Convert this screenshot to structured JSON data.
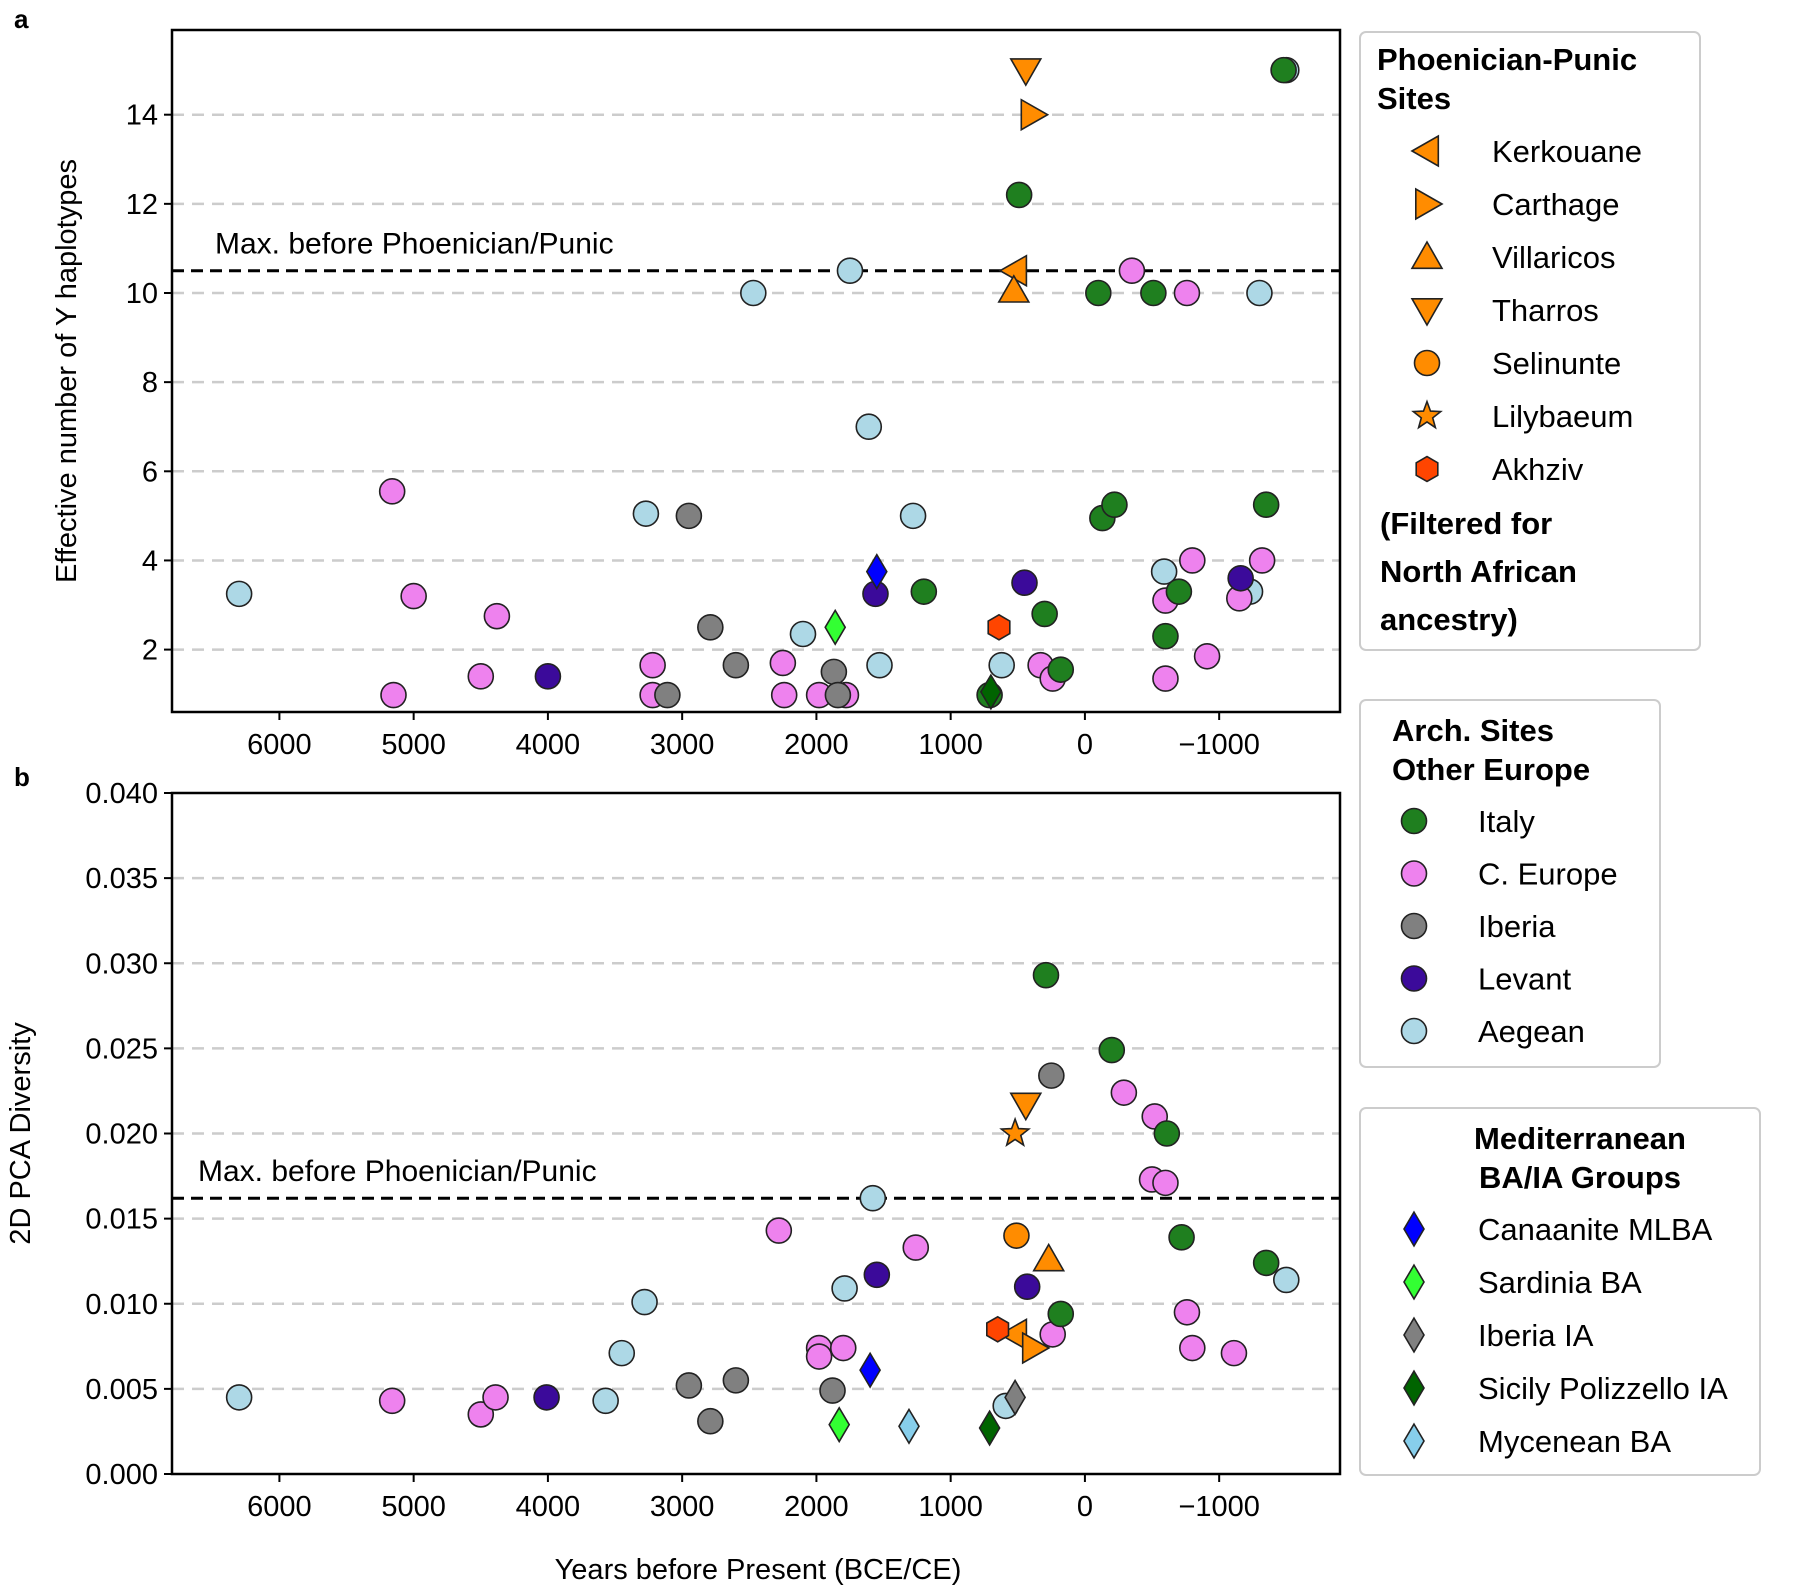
{
  "panel_labels": {
    "a": "a",
    "b": "b"
  },
  "x_axis_label": "Years before Present (BCE/CE)",
  "chart_data": [
    {
      "type": "scatter",
      "panel": "a",
      "xlabel": "",
      "ylabel": "Effective number of Y haplotypes",
      "xlim": [
        6800,
        -1900
      ],
      "ylim": [
        0.6,
        15.9
      ],
      "x_ticks": [
        6000,
        5000,
        4000,
        3000,
        2000,
        1000,
        0,
        -1000
      ],
      "x_tick_labels": [
        "6000",
        "5000",
        "4000",
        "3000",
        "2000",
        "1000",
        "0",
        "−1000"
      ],
      "y_ticks": [
        2,
        4,
        6,
        8,
        10,
        12,
        14
      ],
      "y_tick_labels": [
        "2",
        "4",
        "6",
        "8",
        "10",
        "12",
        "14"
      ],
      "grid": "horizontal dashed",
      "reference_line": {
        "y": 10.5,
        "label": "Max. before Phoenician/Punic"
      },
      "points": [
        {
          "g": "aegean",
          "x": 6300,
          "y": 3.25
        },
        {
          "g": "aegean",
          "x": 3270,
          "y": 5.05
        },
        {
          "g": "aegean",
          "x": 2470,
          "y": 10.0
        },
        {
          "g": "aegean",
          "x": 2100,
          "y": 2.35
        },
        {
          "g": "aegean",
          "x": 1750,
          "y": 10.5
        },
        {
          "g": "aegean",
          "x": 1610,
          "y": 7.0
        },
        {
          "g": "aegean",
          "x": 1530,
          "y": 1.65
        },
        {
          "g": "aegean",
          "x": 1280,
          "y": 5.0
        },
        {
          "g": "aegean",
          "x": 620,
          "y": 1.65
        },
        {
          "g": "aegean",
          "x": -590,
          "y": 3.75
        },
        {
          "g": "aegean",
          "x": -1300,
          "y": 10.0
        },
        {
          "g": "aegean",
          "x": -1230,
          "y": 3.3
        },
        {
          "g": "aegean",
          "x": -1500,
          "y": 15.0
        },
        {
          "g": "ceurope",
          "x": 5160,
          "y": 5.55
        },
        {
          "g": "ceurope",
          "x": 5000,
          "y": 3.2
        },
        {
          "g": "ceurope",
          "x": 5150,
          "y": 0.98
        },
        {
          "g": "ceurope",
          "x": 4500,
          "y": 1.4
        },
        {
          "g": "ceurope",
          "x": 4380,
          "y": 2.75
        },
        {
          "g": "ceurope",
          "x": 3220,
          "y": 1.65
        },
        {
          "g": "ceurope",
          "x": 3220,
          "y": 0.98
        },
        {
          "g": "ceurope",
          "x": 2250,
          "y": 1.7
        },
        {
          "g": "ceurope",
          "x": 2240,
          "y": 0.98
        },
        {
          "g": "ceurope",
          "x": 1980,
          "y": 0.98
        },
        {
          "g": "ceurope",
          "x": 1780,
          "y": 0.98
        },
        {
          "g": "ceurope",
          "x": 330,
          "y": 1.65
        },
        {
          "g": "ceurope",
          "x": 240,
          "y": 1.35
        },
        {
          "g": "ceurope",
          "x": -350,
          "y": 10.5
        },
        {
          "g": "ceurope",
          "x": -760,
          "y": 10.0
        },
        {
          "g": "ceurope",
          "x": -600,
          "y": 3.1
        },
        {
          "g": "ceurope",
          "x": -600,
          "y": 1.35
        },
        {
          "g": "ceurope",
          "x": -800,
          "y": 4.0
        },
        {
          "g": "ceurope",
          "x": -910,
          "y": 1.85
        },
        {
          "g": "ceurope",
          "x": -1150,
          "y": 3.15
        },
        {
          "g": "ceurope",
          "x": -1320,
          "y": 4.0
        },
        {
          "g": "iberia",
          "x": 2950,
          "y": 5.0
        },
        {
          "g": "iberia",
          "x": 2790,
          "y": 2.5
        },
        {
          "g": "iberia",
          "x": 2600,
          "y": 1.65
        },
        {
          "g": "iberia",
          "x": 3110,
          "y": 0.98
        },
        {
          "g": "iberia",
          "x": 1870,
          "y": 1.5
        },
        {
          "g": "iberia",
          "x": 1840,
          "y": 0.98
        },
        {
          "g": "levant",
          "x": 4000,
          "y": 1.4
        },
        {
          "g": "levant",
          "x": 1560,
          "y": 3.25
        },
        {
          "g": "levant",
          "x": 450,
          "y": 3.5
        },
        {
          "g": "levant",
          "x": -1160,
          "y": 3.6
        },
        {
          "g": "italy",
          "x": 490,
          "y": 12.2
        },
        {
          "g": "italy",
          "x": 1200,
          "y": 3.3
        },
        {
          "g": "italy",
          "x": 300,
          "y": 2.8
        },
        {
          "g": "italy",
          "x": 180,
          "y": 1.55
        },
        {
          "g": "italy",
          "x": 710,
          "y": 0.98
        },
        {
          "g": "italy",
          "x": -100,
          "y": 10.0
        },
        {
          "g": "italy",
          "x": -510,
          "y": 10.0
        },
        {
          "g": "italy",
          "x": -130,
          "y": 4.95
        },
        {
          "g": "italy",
          "x": -220,
          "y": 5.25
        },
        {
          "g": "italy",
          "x": -700,
          "y": 3.3
        },
        {
          "g": "italy",
          "x": -600,
          "y": 2.3
        },
        {
          "g": "italy",
          "x": -1350,
          "y": 5.25
        },
        {
          "g": "italy",
          "x": -1480,
          "y": 15.0
        },
        {
          "g": "tharros",
          "x": 440,
          "y": 15.0
        },
        {
          "g": "carthage",
          "x": 390,
          "y": 14.0
        },
        {
          "g": "kerkouane",
          "x": 520,
          "y": 10.5
        },
        {
          "g": "villaricos",
          "x": 530,
          "y": 10.05
        },
        {
          "g": "akhziv",
          "x": 640,
          "y": 2.5
        },
        {
          "g": "canaanite",
          "x": 1550,
          "y": 3.75
        },
        {
          "g": "sardinia",
          "x": 1860,
          "y": 2.5
        },
        {
          "g": "sicily",
          "x": 700,
          "y": 1.05
        }
      ]
    },
    {
      "type": "scatter",
      "panel": "b",
      "xlabel": "Years before Present (BCE/CE)",
      "ylabel": "2D PCA Diversity",
      "xlim": [
        6800,
        -1900
      ],
      "ylim": [
        0.0,
        0.04
      ],
      "x_ticks": [
        6000,
        5000,
        4000,
        3000,
        2000,
        1000,
        0,
        -1000
      ],
      "x_tick_labels": [
        "6000",
        "5000",
        "4000",
        "3000",
        "2000",
        "1000",
        "0",
        "−1000"
      ],
      "y_ticks": [
        0.0,
        0.005,
        0.01,
        0.015,
        0.02,
        0.025,
        0.03,
        0.035,
        0.04
      ],
      "y_tick_labels": [
        "0.000",
        "0.005",
        "0.010",
        "0.015",
        "0.020",
        "0.025",
        "0.030",
        "0.035",
        "0.040"
      ],
      "grid": "horizontal dashed",
      "reference_line": {
        "y": 0.0162,
        "label": "Max. before Phoenician/Punic"
      },
      "points": [
        {
          "g": "aegean",
          "x": 6300,
          "y": 0.0045
        },
        {
          "g": "aegean",
          "x": 3570,
          "y": 0.0043
        },
        {
          "g": "aegean",
          "x": 3450,
          "y": 0.0071
        },
        {
          "g": "aegean",
          "x": 3280,
          "y": 0.0101
        },
        {
          "g": "aegean",
          "x": 1790,
          "y": 0.0109
        },
        {
          "g": "aegean",
          "x": 1580,
          "y": 0.0162
        },
        {
          "g": "aegean",
          "x": 590,
          "y": 0.004
        },
        {
          "g": "aegean",
          "x": -1500,
          "y": 0.0114
        },
        {
          "g": "ceurope",
          "x": 5160,
          "y": 0.0043
        },
        {
          "g": "ceurope",
          "x": 4500,
          "y": 0.0035
        },
        {
          "g": "ceurope",
          "x": 4390,
          "y": 0.0045
        },
        {
          "g": "ceurope",
          "x": 2280,
          "y": 0.0143
        },
        {
          "g": "ceurope",
          "x": 1980,
          "y": 0.0074
        },
        {
          "g": "ceurope",
          "x": 1980,
          "y": 0.0069
        },
        {
          "g": "ceurope",
          "x": 1800,
          "y": 0.0074
        },
        {
          "g": "ceurope",
          "x": 1260,
          "y": 0.0133
        },
        {
          "g": "ceurope",
          "x": 240,
          "y": 0.0082
        },
        {
          "g": "ceurope",
          "x": -290,
          "y": 0.0224
        },
        {
          "g": "ceurope",
          "x": -520,
          "y": 0.021
        },
        {
          "g": "ceurope",
          "x": -500,
          "y": 0.0173
        },
        {
          "g": "ceurope",
          "x": -600,
          "y": 0.0171
        },
        {
          "g": "ceurope",
          "x": -760,
          "y": 0.0095
        },
        {
          "g": "ceurope",
          "x": -800,
          "y": 0.0074
        },
        {
          "g": "ceurope",
          "x": -1110,
          "y": 0.0071
        },
        {
          "g": "iberia",
          "x": 2950,
          "y": 0.0052
        },
        {
          "g": "iberia",
          "x": 2790,
          "y": 0.0031
        },
        {
          "g": "iberia",
          "x": 2600,
          "y": 0.0055
        },
        {
          "g": "iberia",
          "x": 1880,
          "y": 0.0049
        },
        {
          "g": "iberia",
          "x": 250,
          "y": 0.0234
        },
        {
          "g": "levant",
          "x": 4010,
          "y": 0.0045
        },
        {
          "g": "levant",
          "x": 1550,
          "y": 0.0117
        },
        {
          "g": "levant",
          "x": 430,
          "y": 0.011
        },
        {
          "g": "italy",
          "x": 290,
          "y": 0.0293
        },
        {
          "g": "italy",
          "x": -200,
          "y": 0.0249
        },
        {
          "g": "italy",
          "x": -610,
          "y": 0.02
        },
        {
          "g": "italy",
          "x": -720,
          "y": 0.0139
        },
        {
          "g": "italy",
          "x": -1350,
          "y": 0.0124
        },
        {
          "g": "italy",
          "x": 180,
          "y": 0.0094
        },
        {
          "g": "tharros",
          "x": 440,
          "y": 0.0217
        },
        {
          "g": "lilybaeum",
          "x": 520,
          "y": 0.02
        },
        {
          "g": "selinunte",
          "x": 510,
          "y": 0.014
        },
        {
          "g": "villaricos",
          "x": 270,
          "y": 0.0126
        },
        {
          "g": "kerkouane",
          "x": 520,
          "y": 0.0082
        },
        {
          "g": "carthage",
          "x": 380,
          "y": 0.0074
        },
        {
          "g": "akhziv",
          "x": 650,
          "y": 0.0085
        },
        {
          "g": "canaanite",
          "x": 1600,
          "y": 0.0061
        },
        {
          "g": "sardinia",
          "x": 1830,
          "y": 0.0029
        },
        {
          "g": "mycenean",
          "x": 1310,
          "y": 0.0028
        },
        {
          "g": "sicily",
          "x": 710,
          "y": 0.0027
        },
        {
          "g": "iberiaIA",
          "x": 520,
          "y": 0.0045
        }
      ]
    }
  ],
  "legends": {
    "phoenician": {
      "title_line1": "Phoenician-Punic",
      "title_line2": "Sites",
      "items": [
        {
          "g": "kerkouane",
          "label": "Kerkouane"
        },
        {
          "g": "carthage",
          "label": "Carthage"
        },
        {
          "g": "villaricos",
          "label": "Villaricos"
        },
        {
          "g": "tharros",
          "label": "Tharros"
        },
        {
          "g": "selinunte",
          "label": "Selinunte"
        },
        {
          "g": "lilybaeum",
          "label": "Lilybaeum"
        },
        {
          "g": "akhziv",
          "label": "Akhziv"
        }
      ],
      "note_lines": [
        "(Filtered for",
        "North African",
        "ancestry)"
      ]
    },
    "europe": {
      "title_line1": "Arch. Sites",
      "title_line2": "Other Europe",
      "items": [
        {
          "g": "italy",
          "label": "Italy"
        },
        {
          "g": "ceurope",
          "label": "C. Europe"
        },
        {
          "g": "iberia",
          "label": "Iberia"
        },
        {
          "g": "levant",
          "label": "Levant"
        },
        {
          "g": "aegean",
          "label": "Aegean"
        }
      ]
    },
    "mediterranean": {
      "title_line1": "Mediterranean",
      "title_line2": "BA/IA Groups",
      "items": [
        {
          "g": "canaanite",
          "label": "Canaanite MLBA"
        },
        {
          "g": "sardinia",
          "label": "Sardinia BA"
        },
        {
          "g": "iberiaIA",
          "label": "Iberia IA"
        },
        {
          "g": "sicily",
          "label": "Sicily Polizzello IA"
        },
        {
          "g": "mycenean",
          "label": "Mycenean BA"
        }
      ]
    }
  },
  "styles": {
    "italy": {
      "shape": "circle",
      "color": "#1f7f1f"
    },
    "ceurope": {
      "shape": "circle",
      "color": "#ee82ee"
    },
    "iberia": {
      "shape": "circle",
      "color": "#808080"
    },
    "levant": {
      "shape": "circle",
      "color": "#3b0a9a"
    },
    "aegean": {
      "shape": "circle",
      "color": "#add8e6"
    },
    "kerkouane": {
      "shape": "tri-left",
      "color": "#ff8c00"
    },
    "carthage": {
      "shape": "tri-right",
      "color": "#ff8c00"
    },
    "villaricos": {
      "shape": "tri-up",
      "color": "#ff8c00"
    },
    "tharros": {
      "shape": "tri-down",
      "color": "#ff8c00"
    },
    "selinunte": {
      "shape": "circle",
      "color": "#ff8c00"
    },
    "lilybaeum": {
      "shape": "star",
      "color": "#ff8c00"
    },
    "akhziv": {
      "shape": "hexagon",
      "color": "#ff4500"
    },
    "canaanite": {
      "shape": "diamond",
      "color": "#0000ff"
    },
    "sardinia": {
      "shape": "diamond",
      "color": "#33ff33"
    },
    "iberiaIA": {
      "shape": "diamond",
      "color": "#808080"
    },
    "sicily": {
      "shape": "diamond",
      "color": "#006400"
    },
    "mycenean": {
      "shape": "diamond",
      "color": "#87ceeb"
    }
  }
}
